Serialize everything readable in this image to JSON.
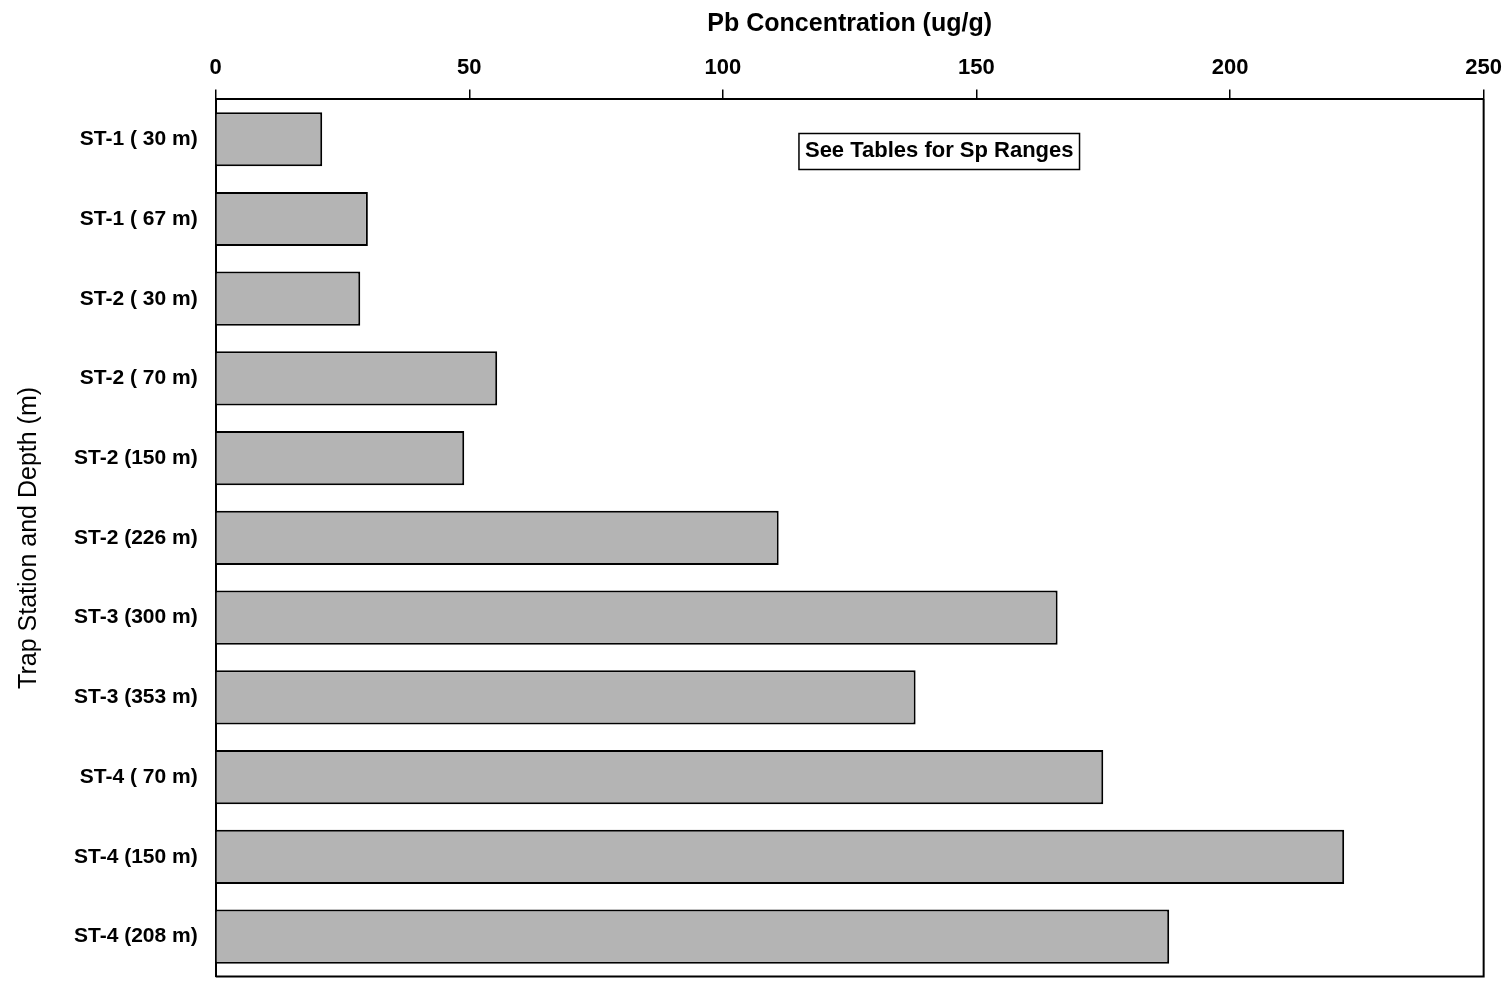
{
  "chart_data": {
    "type": "bar",
    "orientation": "horizontal",
    "xlabel": "Pb Concentration (ug/g)",
    "ylabel": "Trap Station and Depth (m)",
    "categories": [
      "ST-1 ( 30 m)",
      "ST-1 ( 67 m)",
      "ST-2 ( 30 m)",
      "ST-2 ( 70 m)",
      "ST-2 (150 m)",
      "ST-2 (226 m)",
      "ST-3 (300 m)",
      "ST-3 (353 m)",
      "ST-4 ( 70 m)",
      "ST-4 (150 m)",
      "ST-4 (208 m)"
    ],
    "values": [
      21,
      30,
      28.5,
      55.5,
      49,
      111,
      166,
      138,
      175,
      222.5,
      188
    ],
    "color": "#b4b4b4",
    "xlim": [
      0,
      250
    ],
    "xticks": [
      0,
      50,
      100,
      150,
      200,
      250
    ],
    "grid": false,
    "legend": false,
    "annotations": [
      "See Tables for Sp Ranges"
    ]
  }
}
